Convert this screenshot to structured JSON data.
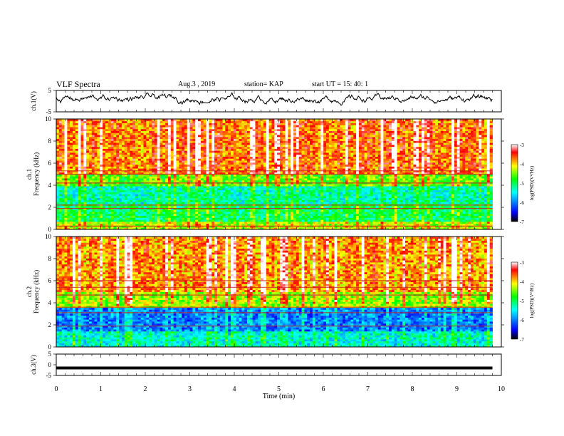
{
  "header": {
    "title": "VLF Spectra",
    "date": "Aug.3 , 2019",
    "station": "station= KAP",
    "start": "start UT = 15: 40: 1"
  },
  "chart_data": [
    {
      "type": "line",
      "name": "ch1-waveform",
      "ylabel": "ch.1(V)",
      "ylim": [
        -5,
        5
      ],
      "yticks": [
        "5",
        "-5"
      ],
      "xlim": [
        0,
        10
      ],
      "description_values": "noisy voltage trace, mostly between -3 and 4 V, x from 0 to 9.8 min"
    },
    {
      "type": "heatmap",
      "name": "ch1-spectrogram",
      "ylabel": "ch.1 Frequency (kHz)",
      "ylim": [
        0,
        10
      ],
      "yticks": [
        "0",
        "2",
        "4",
        "6",
        "8",
        "10"
      ],
      "xlim": [
        0,
        9.8
      ],
      "colorbar": {
        "label": "log(PSD)(V²/Hz)",
        "range": [
          -7,
          -3
        ],
        "ticks": [
          "-3",
          "-4",
          "-5",
          "-6",
          "-7"
        ]
      },
      "bands": [
        {
          "f": [
            5.0,
            10.0
          ],
          "level": -3.7
        },
        {
          "f": [
            4.0,
            5.0
          ],
          "level": -4.6
        },
        {
          "f": [
            2.4,
            4.0
          ],
          "level": -5.3
        },
        {
          "f": [
            0.8,
            2.4
          ],
          "level": -5.0
        },
        {
          "f": [
            0.0,
            0.8
          ],
          "level": -4.3
        }
      ],
      "lines_khz": [
        5.3,
        5.0,
        4.2,
        2.2,
        1.9,
        0.3
      ]
    },
    {
      "type": "heatmap",
      "name": "ch2-spectrogram",
      "ylabel": "ch.2 Frequency (kHz)",
      "ylim": [
        0,
        10
      ],
      "yticks": [
        "0",
        "2",
        "4",
        "6",
        "8",
        "10"
      ],
      "xlim": [
        0,
        9.8
      ],
      "colorbar": {
        "label": "log(PSD)(V²/Hz)",
        "range": [
          -7,
          -3
        ],
        "ticks": [
          "-3",
          "-4",
          "-5",
          "-6",
          "-7"
        ]
      },
      "bands": [
        {
          "f": [
            5.0,
            10.0
          ],
          "level": -3.8
        },
        {
          "f": [
            3.6,
            5.0
          ],
          "level": -4.4
        },
        {
          "f": [
            1.5,
            3.6
          ],
          "level": -6.0
        },
        {
          "f": [
            0.0,
            1.5
          ],
          "level": -5.4
        }
      ],
      "lines_khz": [
        6.0,
        5.4,
        4.7,
        3.6,
        3.1,
        1.9
      ]
    },
    {
      "type": "line",
      "name": "ch3-waveform",
      "ylabel": "ch.3(V)",
      "ylim": [
        -5,
        5
      ],
      "yticks": [
        "5",
        "0",
        "-5"
      ],
      "xlim": [
        0,
        10
      ],
      "x": [
        0,
        9.8
      ],
      "y": [
        -1.5,
        -1.5
      ]
    }
  ],
  "x_axis": {
    "label": "Time (min)",
    "ticks": [
      "0",
      "1",
      "2",
      "3",
      "4",
      "5",
      "6",
      "7",
      "8",
      "9",
      "10"
    ]
  }
}
